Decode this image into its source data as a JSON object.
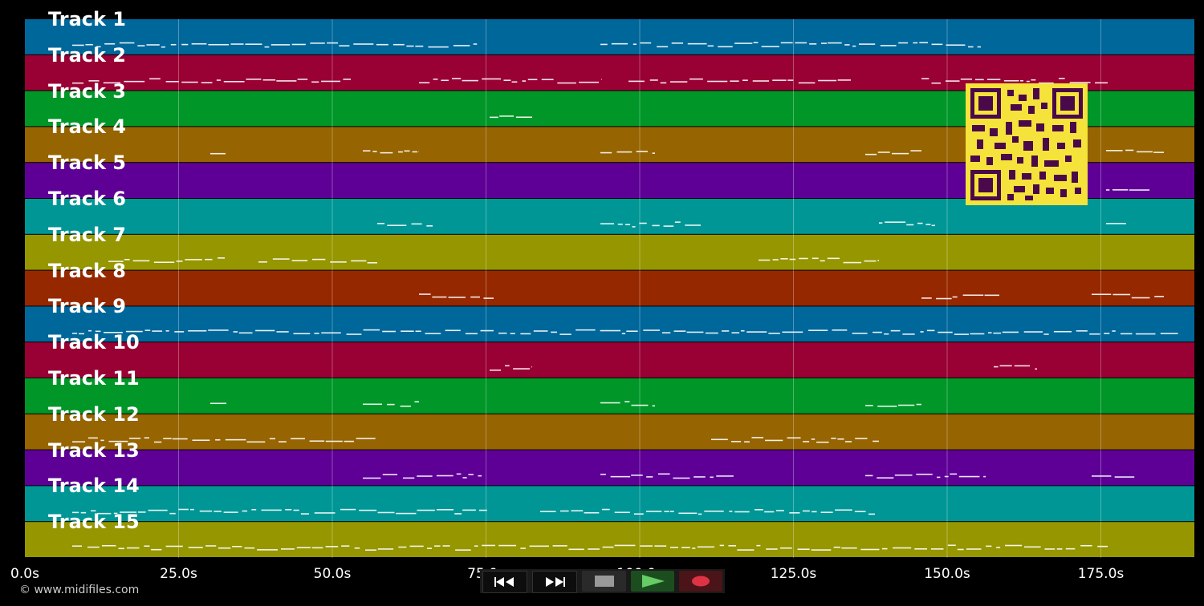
{
  "tracks": [
    {
      "name": "Track 1",
      "color": "#00679a"
    },
    {
      "name": "Track 2",
      "color": "#990033"
    },
    {
      "name": "Track 3",
      "color": "#009628"
    },
    {
      "name": "Track 4",
      "color": "#966400"
    },
    {
      "name": "Track 5",
      "color": "#5e0096"
    },
    {
      "name": "Track 6",
      "color": "#009696"
    },
    {
      "name": "Track 7",
      "color": "#969600"
    },
    {
      "name": "Track 8",
      "color": "#962800"
    },
    {
      "name": "Track 9",
      "color": "#00679a"
    },
    {
      "name": "Track 10",
      "color": "#990033"
    },
    {
      "name": "Track 11",
      "color": "#009628"
    },
    {
      "name": "Track 12",
      "color": "#966400"
    },
    {
      "name": "Track 13",
      "color": "#5e0096"
    },
    {
      "name": "Track 14",
      "color": "#009696"
    },
    {
      "name": "Track 15",
      "color": "#969600"
    }
  ],
  "timeline": {
    "ticks": [
      "0.0s",
      "25.0s",
      "50.0s",
      "75.0s",
      "100.0s",
      "125.0s",
      "150.0s",
      "175.0s"
    ]
  },
  "copyright": "© www.midifiles.com",
  "transport": {
    "buttons": [
      "rewind-icon",
      "fast-forward-icon",
      "stop-icon",
      "play-icon",
      "record-icon"
    ]
  },
  "colors": {
    "qr_fg": "#4a0a4a",
    "qr_bg": "#f5e23a",
    "note": "#ffffff"
  }
}
